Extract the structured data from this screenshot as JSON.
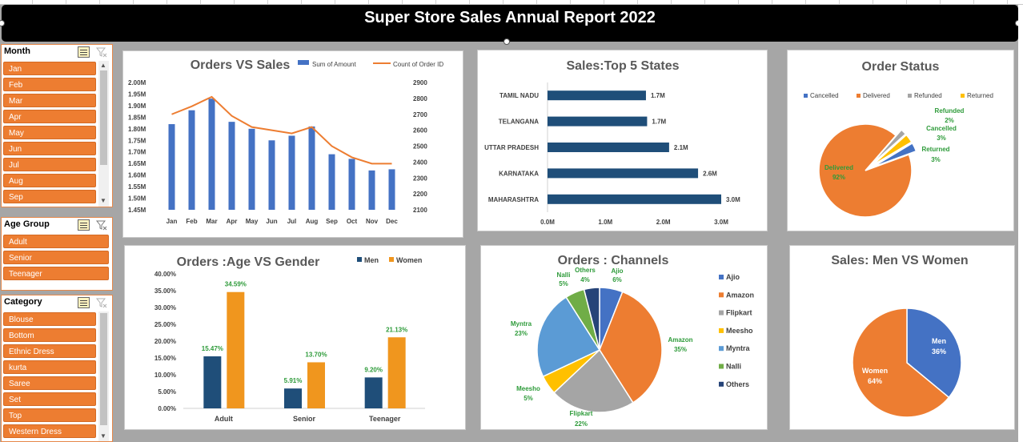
{
  "report": {
    "title": "Super Store Sales Annual Report 2022"
  },
  "colors": {
    "blue": "#4472c4",
    "orange": "#ed7d31",
    "navy": "#1f4e79",
    "gold": "#f0961e",
    "gray": "#a5a5a5",
    "yellow": "#ffc000",
    "lightblue": "#5b9bd5",
    "green": "#70ad47",
    "darknavy": "#264478",
    "label_green": "#2e9b3a"
  },
  "slicers": {
    "month": {
      "header": "Month",
      "items": [
        "Jan",
        "Feb",
        "Mar",
        "Apr",
        "May",
        "Jun",
        "Jul",
        "Aug",
        "Sep"
      ]
    },
    "age_group": {
      "header": "Age Group",
      "items": [
        "Adult",
        "Senior",
        "Teenager"
      ]
    },
    "category": {
      "header": "Category",
      "items": [
        "Blouse",
        "Bottom",
        "Ethnic Dress",
        "kurta",
        "Saree",
        "Set",
        "Top",
        "Western Dress"
      ]
    }
  },
  "chart_data": [
    {
      "id": "orders_vs_sales",
      "type": "bar",
      "title": "Orders VS Sales",
      "legend": "top",
      "categories": [
        "Jan",
        "Feb",
        "Mar",
        "Apr",
        "May",
        "Jun",
        "Jul",
        "Aug",
        "Sep",
        "Oct",
        "Nov",
        "Dec"
      ],
      "series": [
        {
          "name": "Sum of Amount",
          "type": "bar",
          "axis": "left",
          "values": [
            1.82,
            1.88,
            1.93,
            1.83,
            1.8,
            1.75,
            1.77,
            1.81,
            1.69,
            1.67,
            1.62,
            1.625
          ]
        },
        {
          "name": "Count of Order ID",
          "type": "line",
          "axis": "right",
          "values": [
            2700,
            2750,
            2810,
            2690,
            2620,
            2600,
            2580,
            2620,
            2500,
            2430,
            2390,
            2390
          ]
        }
      ],
      "ylim_left": [
        1.45,
        2.0
      ],
      "yticks_left": [
        "2.00M",
        "1.95M",
        "1.90M",
        "1.85M",
        "1.80M",
        "1.75M",
        "1.70M",
        "1.65M",
        "1.60M",
        "1.55M",
        "1.50M",
        "1.45M"
      ],
      "ylim_right": [
        2100,
        2900
      ],
      "yticks_right": [
        "2900",
        "2800",
        "2700",
        "2600",
        "2500",
        "2400",
        "2300",
        "2200",
        "2100"
      ]
    },
    {
      "id": "top_states",
      "type": "bar",
      "orientation": "horizontal",
      "title": "Sales:Top 5 States",
      "categories": [
        "TAMIL NADU",
        "TELANGANA",
        "UTTAR PRADESH",
        "KARNATAKA",
        "MAHARASHTRA"
      ],
      "values": [
        1.7,
        1.72,
        2.1,
        2.6,
        3.0
      ],
      "data_labels": [
        "1.7M",
        "1.7M",
        "2.1M",
        "2.6M",
        "3.0M"
      ],
      "xlim": [
        0,
        3
      ],
      "xticks": [
        "0.0M",
        "1.0M",
        "2.0M",
        "3.0M"
      ]
    },
    {
      "id": "order_status",
      "type": "pie",
      "title": "Order Status",
      "legend": "top",
      "labels": [
        "Cancelled",
        "Delivered",
        "Refunded",
        "Returned"
      ],
      "values": [
        3,
        92,
        2,
        3
      ],
      "data_labels": [
        {
          "name": "Cancelled",
          "pct": "3%"
        },
        {
          "name": "Delivered",
          "pct": "92%"
        },
        {
          "name": "Refunded",
          "pct": "2%"
        },
        {
          "name": "Returned",
          "pct": "3%"
        }
      ]
    },
    {
      "id": "age_vs_gender",
      "type": "bar",
      "title": "Orders :Age VS Gender",
      "legend": "top-right",
      "categories": [
        "Adult",
        "Senior",
        "Teenager"
      ],
      "series": [
        {
          "name": "Men",
          "values": [
            15.47,
            5.91,
            9.2
          ],
          "labels": [
            "15.47%",
            "5.91%",
            "9.20%"
          ]
        },
        {
          "name": "Women",
          "values": [
            34.59,
            13.7,
            21.13
          ],
          "labels": [
            "34.59%",
            "13.70%",
            "21.13%"
          ]
        }
      ],
      "ylim": [
        0,
        40
      ],
      "yticks": [
        "40.00%",
        "35.00%",
        "30.00%",
        "25.00%",
        "20.00%",
        "15.00%",
        "10.00%",
        "5.00%",
        "0.00%"
      ]
    },
    {
      "id": "channels",
      "type": "pie",
      "title": "Orders : Channels",
      "legend": "right",
      "labels": [
        "Ajio",
        "Amazon",
        "Flipkart",
        "Meesho",
        "Myntra",
        "Nalli",
        "Others"
      ],
      "values": [
        6,
        35,
        22,
        5,
        23,
        5,
        4
      ],
      "data_labels": [
        {
          "name": "Ajio",
          "pct": "6%"
        },
        {
          "name": "Amazon",
          "pct": "35%"
        },
        {
          "name": "Flipkart",
          "pct": "22%"
        },
        {
          "name": "Meesho",
          "pct": "5%"
        },
        {
          "name": "Myntra",
          "pct": "23%"
        },
        {
          "name": "Nalli",
          "pct": "5%"
        },
        {
          "name": "Others",
          "pct": "4%"
        }
      ]
    },
    {
      "id": "men_vs_women",
      "type": "pie",
      "title": "Sales: Men VS Women",
      "labels": [
        "Men",
        "Women"
      ],
      "values": [
        36,
        64
      ],
      "data_labels": [
        {
          "name": "Men",
          "pct": "36%"
        },
        {
          "name": "Women",
          "pct": "64%"
        }
      ]
    }
  ]
}
